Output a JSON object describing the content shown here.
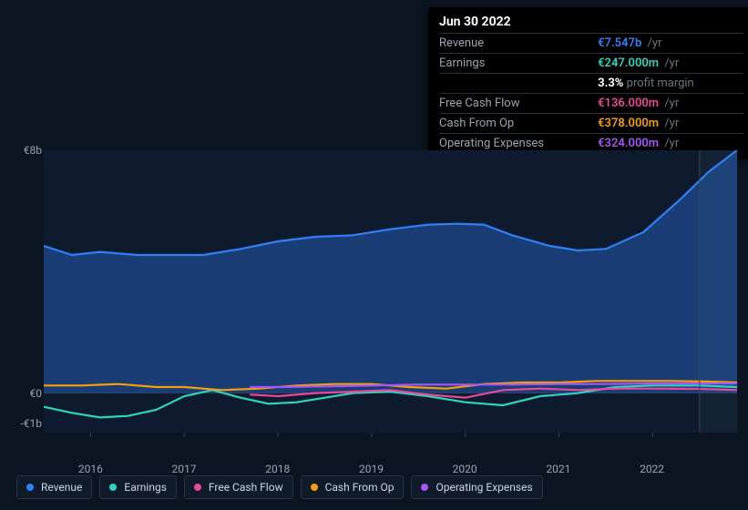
{
  "tooltip": {
    "date": "Jun 30 2022",
    "rows": [
      {
        "label": "Revenue",
        "value": "€7.547b",
        "suffix": "/yr",
        "color": "#2f81f7"
      },
      {
        "label": "Earnings",
        "value": "€247.000m",
        "suffix": "/yr",
        "color": "#2dd4bf",
        "sub_bold": "3.3%",
        "sub_rest": "profit margin"
      },
      {
        "label": "Free Cash Flow",
        "value": "€136.000m",
        "suffix": "/yr",
        "color": "#ec4899"
      },
      {
        "label": "Cash From Op",
        "value": "€378.000m",
        "suffix": "/yr",
        "color": "#f59e0b"
      },
      {
        "label": "Operating Expenses",
        "value": "€324.000m",
        "suffix": "/yr",
        "color": "#a855f7"
      }
    ]
  },
  "chart": {
    "type": "area-line",
    "background": "#0b1421",
    "plot_bg_left": "#0e1a2e",
    "plot_bg_right": "#142236",
    "x_labels": [
      "2016",
      "2017",
      "2018",
      "2019",
      "2020",
      "2021",
      "2022"
    ],
    "x_domain": [
      2015.5,
      2022.9
    ],
    "y_domain": [
      -1.3,
      8.0
    ],
    "y_ticks": [
      {
        "v": 8,
        "label": "€8b"
      },
      {
        "v": 0,
        "label": "€0"
      },
      {
        "v": -1,
        "label": "-€1b"
      }
    ],
    "marker_x": 2022.5,
    "series": [
      {
        "name": "Revenue",
        "color": "#2f81f7",
        "fill": true,
        "data": [
          [
            2015.5,
            4.85
          ],
          [
            2015.8,
            4.55
          ],
          [
            2016.1,
            4.65
          ],
          [
            2016.5,
            4.55
          ],
          [
            2016.9,
            4.55
          ],
          [
            2017.2,
            4.55
          ],
          [
            2017.6,
            4.75
          ],
          [
            2018.0,
            5.0
          ],
          [
            2018.4,
            5.15
          ],
          [
            2018.8,
            5.2
          ],
          [
            2019.2,
            5.4
          ],
          [
            2019.6,
            5.55
          ],
          [
            2019.9,
            5.58
          ],
          [
            2020.2,
            5.55
          ],
          [
            2020.5,
            5.2
          ],
          [
            2020.9,
            4.85
          ],
          [
            2021.2,
            4.7
          ],
          [
            2021.5,
            4.75
          ],
          [
            2021.9,
            5.3
          ],
          [
            2022.3,
            6.4
          ],
          [
            2022.6,
            7.3
          ],
          [
            2022.9,
            8.0
          ]
        ]
      },
      {
        "name": "Earnings",
        "color": "#2dd4bf",
        "fill": false,
        "data": [
          [
            2015.5,
            -0.45
          ],
          [
            2015.8,
            -0.65
          ],
          [
            2016.1,
            -0.8
          ],
          [
            2016.4,
            -0.75
          ],
          [
            2016.7,
            -0.55
          ],
          [
            2017.0,
            -0.1
          ],
          [
            2017.3,
            0.1
          ],
          [
            2017.6,
            -0.15
          ],
          [
            2017.9,
            -0.35
          ],
          [
            2018.2,
            -0.3
          ],
          [
            2018.5,
            -0.15
          ],
          [
            2018.8,
            0.0
          ],
          [
            2019.2,
            0.05
          ],
          [
            2019.6,
            -0.1
          ],
          [
            2020.0,
            -0.3
          ],
          [
            2020.4,
            -0.4
          ],
          [
            2020.8,
            -0.1
          ],
          [
            2021.2,
            0.0
          ],
          [
            2021.6,
            0.2
          ],
          [
            2022.0,
            0.25
          ],
          [
            2022.5,
            0.25
          ],
          [
            2022.9,
            0.2
          ]
        ]
      },
      {
        "name": "Free Cash Flow",
        "color": "#ec4899",
        "fill": false,
        "data": [
          [
            2017.7,
            -0.05
          ],
          [
            2018.0,
            -0.1
          ],
          [
            2018.4,
            0.0
          ],
          [
            2018.8,
            0.05
          ],
          [
            2019.2,
            0.1
          ],
          [
            2019.6,
            -0.05
          ],
          [
            2020.0,
            -0.15
          ],
          [
            2020.4,
            0.1
          ],
          [
            2020.8,
            0.15
          ],
          [
            2021.2,
            0.1
          ],
          [
            2021.6,
            0.15
          ],
          [
            2022.0,
            0.15
          ],
          [
            2022.5,
            0.14
          ],
          [
            2022.9,
            0.1
          ]
        ]
      },
      {
        "name": "Cash From Op",
        "color": "#f59e0b",
        "fill": false,
        "data": [
          [
            2015.5,
            0.25
          ],
          [
            2015.9,
            0.25
          ],
          [
            2016.3,
            0.3
          ],
          [
            2016.7,
            0.2
          ],
          [
            2017.0,
            0.2
          ],
          [
            2017.4,
            0.1
          ],
          [
            2017.8,
            0.15
          ],
          [
            2018.2,
            0.25
          ],
          [
            2018.6,
            0.3
          ],
          [
            2019.0,
            0.3
          ],
          [
            2019.4,
            0.2
          ],
          [
            2019.8,
            0.15
          ],
          [
            2020.2,
            0.3
          ],
          [
            2020.6,
            0.35
          ],
          [
            2021.0,
            0.35
          ],
          [
            2021.4,
            0.4
          ],
          [
            2021.8,
            0.4
          ],
          [
            2022.2,
            0.4
          ],
          [
            2022.6,
            0.38
          ],
          [
            2022.9,
            0.35
          ]
        ]
      },
      {
        "name": "Operating Expenses",
        "color": "#a855f7",
        "fill": false,
        "data": [
          [
            2017.7,
            0.2
          ],
          [
            2018.0,
            0.2
          ],
          [
            2018.5,
            0.22
          ],
          [
            2019.0,
            0.25
          ],
          [
            2019.5,
            0.28
          ],
          [
            2020.0,
            0.28
          ],
          [
            2020.5,
            0.28
          ],
          [
            2021.0,
            0.3
          ],
          [
            2021.5,
            0.3
          ],
          [
            2022.0,
            0.32
          ],
          [
            2022.5,
            0.32
          ],
          [
            2022.9,
            0.32
          ]
        ]
      }
    ]
  },
  "legend": [
    {
      "label": "Revenue",
      "color": "#2f81f7"
    },
    {
      "label": "Earnings",
      "color": "#2dd4bf"
    },
    {
      "label": "Free Cash Flow",
      "color": "#ec4899"
    },
    {
      "label": "Cash From Op",
      "color": "#f59e0b"
    },
    {
      "label": "Operating Expenses",
      "color": "#a855f7"
    }
  ]
}
